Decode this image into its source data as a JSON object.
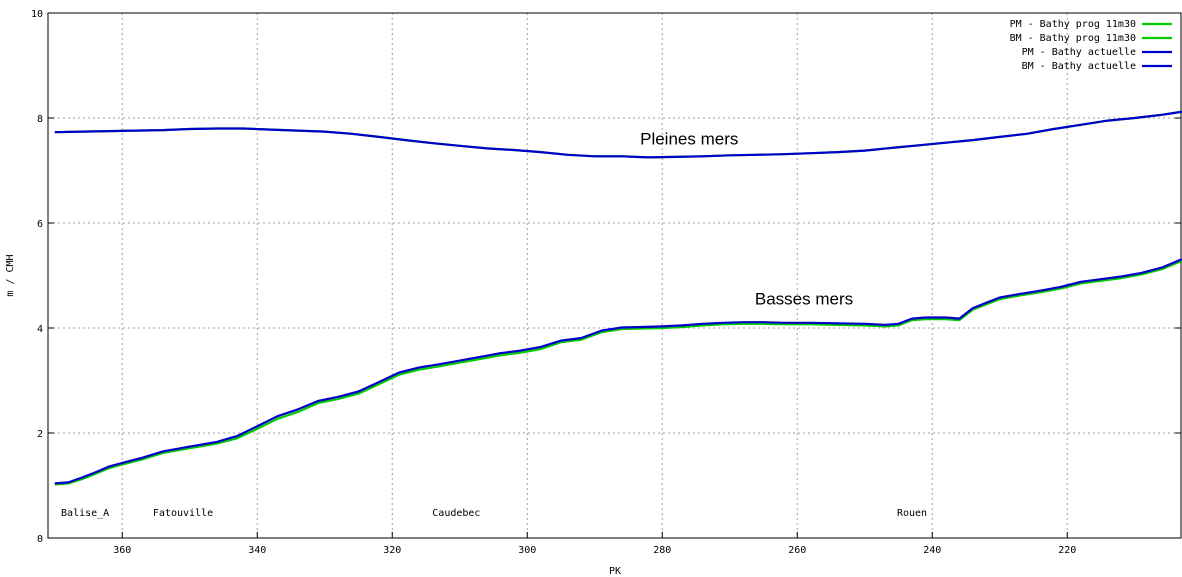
{
  "chart_data": {
    "type": "line",
    "xlabel": "PK",
    "ylabel": "m / CMH",
    "x_reversed": true,
    "xlim": [
      371,
      203
    ],
    "ylim": [
      0,
      10
    ],
    "x_ticks": [
      360,
      340,
      320,
      300,
      280,
      260,
      240,
      220
    ],
    "y_ticks": [
      0,
      2,
      4,
      6,
      8,
      10
    ],
    "grid": true,
    "legend_position": "top-right",
    "annotations": [
      {
        "text": "Pleines mers",
        "x": 276,
        "y": 7.5
      },
      {
        "text": "Basses mers",
        "x": 259,
        "y": 4.45
      }
    ],
    "place_labels": [
      {
        "text": "Balise_A",
        "x": 365.5,
        "y": 0.5
      },
      {
        "text": "Fatouville",
        "x": 351,
        "y": 0.5
      },
      {
        "text": "Caudebec",
        "x": 310.5,
        "y": 0.5
      },
      {
        "text": "Rouen",
        "x": 243,
        "y": 0.5
      }
    ],
    "series": [
      {
        "name": "PM - Bathy prog 11m30",
        "color": "#00cc00",
        "x": [
          370,
          366,
          362,
          358,
          354,
          350,
          346,
          342,
          338,
          334,
          330,
          326,
          322,
          318,
          314,
          310,
          306,
          302,
          298,
          294,
          290,
          286,
          282,
          278,
          274,
          270,
          266,
          262,
          258,
          254,
          250,
          246,
          242,
          238,
          234,
          230,
          226,
          222,
          218,
          214,
          210,
          206,
          203
        ],
        "y": [
          7.73,
          7.74,
          7.75,
          7.76,
          7.77,
          7.79,
          7.8,
          7.8,
          7.78,
          7.76,
          7.74,
          7.7,
          7.64,
          7.58,
          7.52,
          7.47,
          7.42,
          7.39,
          7.35,
          7.3,
          7.27,
          7.27,
          7.25,
          7.26,
          7.27,
          7.29,
          7.3,
          7.31,
          7.33,
          7.35,
          7.38,
          7.43,
          7.48,
          7.53,
          7.58,
          7.64,
          7.7,
          7.79,
          7.87,
          7.95,
          8.0,
          8.06,
          8.12
        ]
      },
      {
        "name": "BM - Bathy prog 11m30",
        "color": "#00cc00",
        "x": [
          370,
          368,
          366,
          364,
          362,
          360,
          357,
          354,
          350,
          346,
          343,
          340,
          337,
          334,
          331,
          328,
          325,
          322,
          319,
          316,
          313,
          310,
          307,
          304,
          301,
          298,
          295,
          292,
          289,
          286,
          283,
          280,
          277,
          274,
          271,
          268,
          265,
          262,
          258,
          254,
          250,
          247,
          245,
          243,
          241,
          238,
          236,
          234,
          232,
          230,
          227,
          224,
          221,
          218,
          215,
          212,
          209,
          206,
          203
        ],
        "y": [
          1.02,
          1.04,
          1.12,
          1.22,
          1.33,
          1.4,
          1.5,
          1.62,
          1.71,
          1.8,
          1.9,
          2.08,
          2.27,
          2.4,
          2.57,
          2.65,
          2.75,
          2.93,
          3.11,
          3.21,
          3.27,
          3.34,
          3.41,
          3.48,
          3.53,
          3.6,
          3.73,
          3.78,
          3.92,
          3.98,
          3.99,
          4.0,
          4.02,
          4.05,
          4.07,
          4.08,
          4.08,
          4.07,
          4.07,
          4.06,
          4.05,
          4.03,
          4.05,
          4.15,
          4.17,
          4.17,
          4.15,
          4.35,
          4.45,
          4.55,
          4.62,
          4.68,
          4.75,
          4.85,
          4.9,
          4.95,
          5.02,
          5.12,
          5.28
        ]
      },
      {
        "name": "PM - Bathy actuelle",
        "color": "#0000cc",
        "x": [
          370,
          366,
          362,
          358,
          354,
          350,
          346,
          342,
          338,
          334,
          330,
          326,
          322,
          318,
          314,
          310,
          306,
          302,
          298,
          294,
          290,
          286,
          282,
          278,
          274,
          270,
          266,
          262,
          258,
          254,
          250,
          246,
          242,
          238,
          234,
          230,
          226,
          222,
          218,
          214,
          210,
          206,
          203
        ],
        "y": [
          7.73,
          7.74,
          7.75,
          7.76,
          7.77,
          7.79,
          7.8,
          7.8,
          7.78,
          7.76,
          7.74,
          7.7,
          7.64,
          7.58,
          7.52,
          7.47,
          7.42,
          7.39,
          7.35,
          7.3,
          7.27,
          7.27,
          7.25,
          7.26,
          7.27,
          7.29,
          7.3,
          7.31,
          7.33,
          7.35,
          7.38,
          7.43,
          7.48,
          7.53,
          7.58,
          7.64,
          7.7,
          7.79,
          7.87,
          7.95,
          8.0,
          8.06,
          8.12
        ]
      },
      {
        "name": "BM - Bathy actuelle",
        "color": "#0000cc",
        "x": [
          370,
          368,
          366,
          364,
          362,
          360,
          357,
          354,
          350,
          346,
          343,
          340,
          337,
          334,
          331,
          328,
          325,
          322,
          319,
          316,
          313,
          310,
          307,
          304,
          301,
          298,
          295,
          292,
          289,
          286,
          283,
          280,
          277,
          274,
          271,
          268,
          265,
          262,
          258,
          254,
          250,
          247,
          245,
          243,
          241,
          238,
          236,
          234,
          232,
          230,
          227,
          224,
          221,
          218,
          215,
          212,
          209,
          206,
          203
        ],
        "y": [
          1.04,
          1.06,
          1.15,
          1.25,
          1.36,
          1.43,
          1.53,
          1.65,
          1.74,
          1.83,
          1.94,
          2.13,
          2.32,
          2.45,
          2.61,
          2.69,
          2.79,
          2.97,
          3.15,
          3.25,
          3.31,
          3.38,
          3.45,
          3.52,
          3.57,
          3.64,
          3.76,
          3.81,
          3.95,
          4.01,
          4.02,
          4.03,
          4.05,
          4.08,
          4.1,
          4.11,
          4.11,
          4.1,
          4.1,
          4.09,
          4.08,
          4.06,
          4.08,
          4.18,
          4.2,
          4.2,
          4.18,
          4.38,
          4.48,
          4.58,
          4.65,
          4.71,
          4.78,
          4.88,
          4.93,
          4.98,
          5.05,
          5.15,
          5.31
        ]
      }
    ]
  }
}
